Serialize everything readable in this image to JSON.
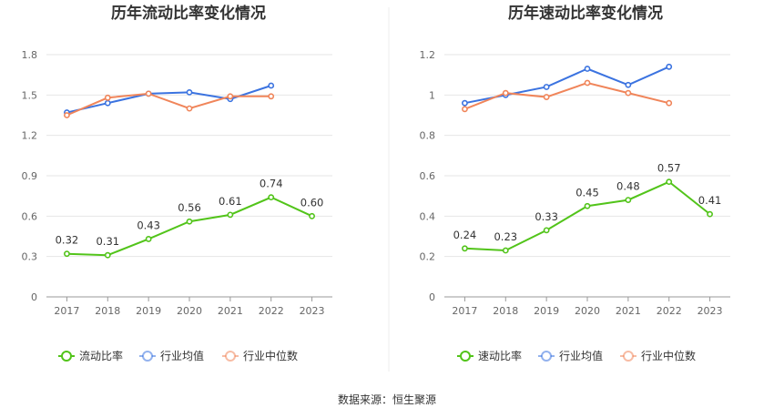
{
  "source_label": "数据来源：恒生聚源",
  "chart_data": [
    {
      "type": "line",
      "title": "历年流动比率变化情况",
      "categories": [
        "2017",
        "2018",
        "2019",
        "2020",
        "2021",
        "2022",
        "2023"
      ],
      "y_ticks": [
        "0",
        "0.3",
        "0.6",
        "0.9",
        "1.2",
        "1.5",
        "1.8"
      ],
      "ylim": [
        0,
        1.8
      ],
      "grid": true,
      "legend_position": "bottom",
      "series": [
        {
          "name": "流动比率",
          "color": "#52c41a",
          "values": [
            0.32,
            0.31,
            0.43,
            0.56,
            0.61,
            0.74,
            0.6
          ],
          "labels": [
            "0.32",
            "0.31",
            "0.43",
            "0.56",
            "0.61",
            "0.74",
            "0.60"
          ]
        },
        {
          "name": "行业均值",
          "color": "#3b73e0",
          "values": [
            1.37,
            1.44,
            1.51,
            1.52,
            1.47,
            1.57,
            null
          ]
        },
        {
          "name": "行业中位数",
          "color": "#f0855a",
          "values": [
            1.35,
            1.48,
            1.51,
            1.4,
            1.49,
            1.49,
            null
          ]
        }
      ]
    },
    {
      "type": "line",
      "title": "历年速动比率变化情况",
      "categories": [
        "2017",
        "2018",
        "2019",
        "2020",
        "2021",
        "2022",
        "2023"
      ],
      "y_ticks": [
        "0",
        "0.2",
        "0.4",
        "0.6",
        "0.8",
        "1",
        "1.2"
      ],
      "ylim": [
        0,
        1.2
      ],
      "grid": true,
      "legend_position": "bottom",
      "series": [
        {
          "name": "速动比率",
          "color": "#52c41a",
          "values": [
            0.24,
            0.23,
            0.33,
            0.45,
            0.48,
            0.57,
            0.41
          ],
          "labels": [
            "0.24",
            "0.23",
            "0.33",
            "0.45",
            "0.48",
            "0.57",
            "0.41"
          ]
        },
        {
          "name": "行业均值",
          "color": "#3b73e0",
          "values": [
            0.96,
            1.0,
            1.04,
            1.13,
            1.05,
            1.14,
            null
          ]
        },
        {
          "name": "行业中位数",
          "color": "#f0855a",
          "values": [
            0.93,
            1.01,
            0.99,
            1.06,
            1.01,
            0.96,
            null
          ]
        }
      ]
    }
  ]
}
